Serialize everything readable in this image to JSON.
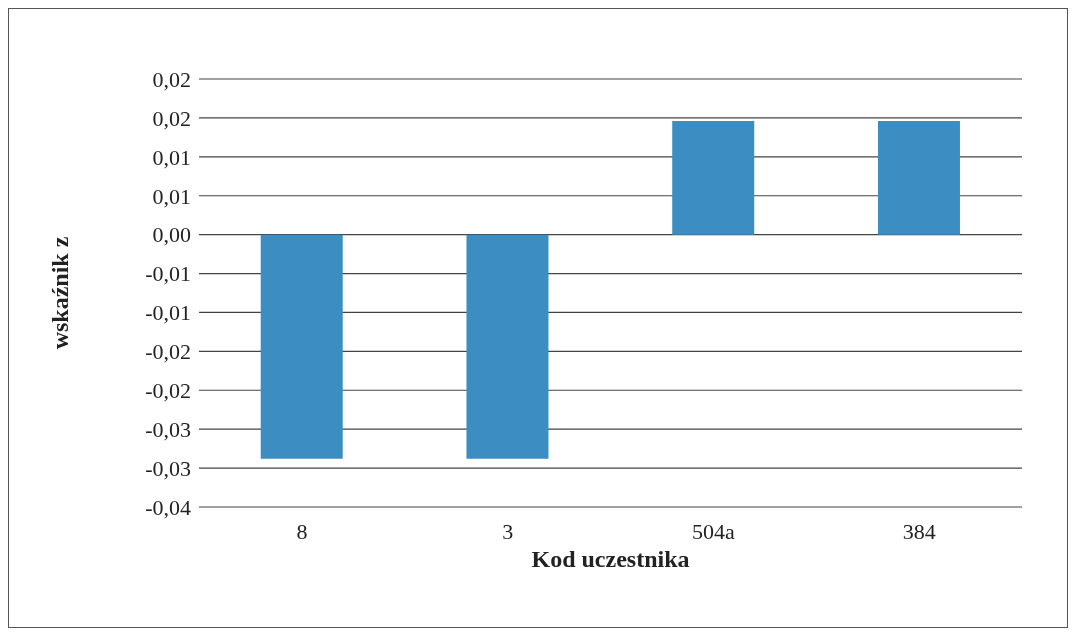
{
  "chart_data": {
    "type": "bar",
    "xlabel": "Kod uczestnika",
    "ylabel": "wskaźnik z",
    "categories": [
      "8",
      "3",
      "504a",
      "384"
    ],
    "values": [
      -0.0288,
      -0.0288,
      0.0146,
      0.0146
    ],
    "color": "#3b8dc2",
    "ylim": [
      -0.035,
      0.02
    ],
    "yticks": [
      {
        "value": 0.02,
        "label": "0,02"
      },
      {
        "value": 0.015,
        "label": "0,02"
      },
      {
        "value": 0.01,
        "label": "0,01"
      },
      {
        "value": 0.005,
        "label": "0,01"
      },
      {
        "value": 0,
        "label": "0,00"
      },
      {
        "value": -0.005,
        "label": "-0,01"
      },
      {
        "value": -0.01,
        "label": "-0,01"
      },
      {
        "value": -0.015,
        "label": "-0,02"
      },
      {
        "value": -0.02,
        "label": "-0,02"
      },
      {
        "value": -0.025,
        "label": "-0,03"
      },
      {
        "value": -0.03,
        "label": "-0,03"
      },
      {
        "value": -0.035,
        "label": "-0,04"
      }
    ],
    "grid": "y"
  }
}
